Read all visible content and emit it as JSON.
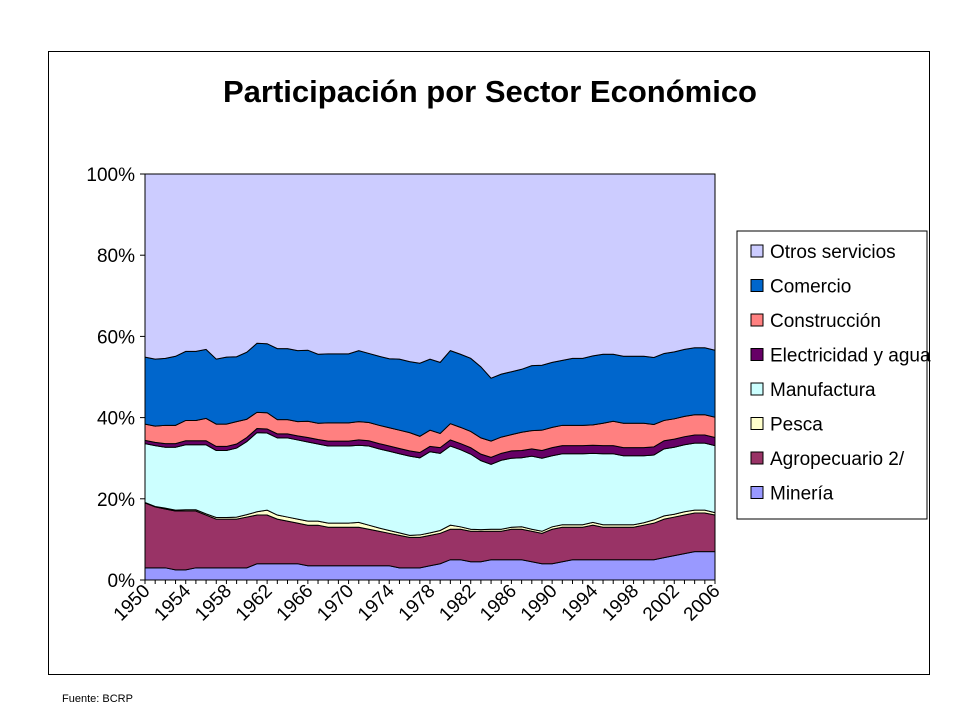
{
  "chart_data": {
    "type": "area",
    "stacked": true,
    "percent": true,
    "title": "Participación por Sector Económico",
    "source": "Fuente: BCRP",
    "x": [
      1950,
      1951,
      1952,
      1953,
      1954,
      1955,
      1956,
      1957,
      1958,
      1959,
      1960,
      1961,
      1962,
      1963,
      1964,
      1965,
      1966,
      1967,
      1968,
      1969,
      1970,
      1971,
      1972,
      1973,
      1974,
      1975,
      1976,
      1977,
      1978,
      1979,
      1980,
      1981,
      1982,
      1983,
      1984,
      1985,
      1986,
      1987,
      1988,
      1989,
      1990,
      1991,
      1992,
      1993,
      1994,
      1995,
      1996,
      1997,
      1998,
      1999,
      2000,
      2001,
      2002,
      2003,
      2004,
      2005,
      2006
    ],
    "x_tick_labels": [
      "1950",
      "1954",
      "1958",
      "1962",
      "1966",
      "1970",
      "1974",
      "1978",
      "1982",
      "1986",
      "1990",
      "1994",
      "1998",
      "2002",
      "2006"
    ],
    "y_ticks": [
      "0%",
      "20%",
      "40%",
      "60%",
      "80%",
      "100%"
    ],
    "ylim": [
      0,
      100
    ],
    "legend_position": "right",
    "series": [
      {
        "name": "Minería",
        "color": "#9999ff",
        "values": [
          3,
          3,
          3,
          2.5,
          2.5,
          3,
          3,
          3,
          3,
          3,
          3,
          4,
          4,
          4,
          4,
          4,
          3.5,
          3.5,
          3.5,
          3.5,
          3.5,
          3.5,
          3.5,
          3.5,
          3.5,
          3,
          3,
          3,
          3.5,
          4,
          5,
          5,
          4.5,
          4.5,
          5,
          5,
          5,
          5,
          4.5,
          4,
          4,
          4.5,
          5,
          5,
          5,
          5,
          5,
          5,
          5,
          5,
          5,
          5.5,
          6,
          6.5,
          7,
          7,
          7
        ]
      },
      {
        "name": "Agropecuario 2/",
        "color": "#993366",
        "values": [
          16,
          15,
          14.5,
          14.5,
          14.5,
          14,
          13,
          12,
          12,
          12,
          12.5,
          12,
          12,
          11,
          10.5,
          10,
          10,
          10,
          9.5,
          9.5,
          9.5,
          9.5,
          9,
          8.5,
          8,
          8,
          7.5,
          7.5,
          7.5,
          7.5,
          7.5,
          7.5,
          7.5,
          7.5,
          7,
          7,
          7.5,
          7.5,
          7.5,
          7.5,
          8.5,
          8.5,
          8,
          8,
          8.5,
          8,
          8,
          8,
          8,
          8.5,
          9,
          9.5,
          9.5,
          9.5,
          9.5,
          9.5,
          9
        ]
      },
      {
        "name": "Pesca",
        "color": "#ffffcc",
        "values": [
          0.1,
          0.1,
          0.2,
          0.2,
          0.3,
          0.3,
          0.3,
          0.4,
          0.4,
          0.5,
          0.6,
          0.8,
          1.2,
          1,
          1,
          1,
          1,
          1,
          1,
          1,
          1,
          1.2,
          1,
          0.8,
          0.7,
          0.6,
          0.5,
          0.6,
          0.6,
          0.7,
          1,
          0.6,
          0.5,
          0.4,
          0.5,
          0.5,
          0.5,
          0.6,
          0.5,
          0.5,
          0.6,
          0.6,
          0.6,
          0.6,
          0.7,
          0.6,
          0.6,
          0.6,
          0.6,
          0.6,
          0.8,
          0.8,
          0.7,
          0.8,
          0.7,
          0.7,
          0.6
        ]
      },
      {
        "name": "Manufactura",
        "color": "#ccffff",
        "values": [
          14.5,
          15,
          15,
          15.5,
          16,
          16,
          17,
          16.5,
          16.5,
          17,
          18,
          19.5,
          19,
          19,
          19.5,
          19.5,
          19.5,
          19,
          19,
          19,
          19,
          19,
          19.5,
          19.5,
          19.5,
          19.5,
          19.5,
          19,
          20,
          19,
          19.5,
          19,
          18.5,
          17,
          16,
          17,
          17,
          17,
          18,
          18,
          17.5,
          17.5,
          17.5,
          17.5,
          17,
          17.5,
          17.5,
          17,
          17,
          16.5,
          16,
          16.5,
          16.5,
          16.5,
          16.5,
          16.5,
          16.5
        ]
      },
      {
        "name": "Electricidad y agua",
        "color": "#660066",
        "values": [
          0.8,
          0.8,
          0.9,
          0.9,
          1,
          1,
          1,
          1,
          1,
          1,
          1,
          1,
          1,
          1,
          1,
          1,
          1.1,
          1.1,
          1.2,
          1.2,
          1.2,
          1.3,
          1.3,
          1.3,
          1.3,
          1.3,
          1.3,
          1.3,
          1.3,
          1.4,
          1.5,
          1.5,
          1.6,
          1.6,
          1.7,
          1.7,
          1.8,
          1.8,
          1.8,
          1.9,
          2,
          2,
          2,
          2,
          2,
          2,
          2,
          2,
          2,
          2,
          2,
          2,
          2,
          2,
          2,
          2,
          2
        ]
      },
      {
        "name": "Construcción",
        "color": "#ff8080",
        "values": [
          4,
          4,
          4.5,
          4.5,
          5,
          5,
          5.5,
          5.5,
          5.5,
          5.5,
          4.5,
          4,
          4,
          3.5,
          3.5,
          3.5,
          4,
          4,
          4.5,
          4.5,
          4.5,
          4.5,
          4.5,
          4.5,
          4.5,
          4.5,
          4.5,
          4,
          4,
          3.5,
          4,
          4,
          4,
          4,
          4,
          4,
          4,
          4.5,
          4.5,
          5,
          5,
          5,
          5,
          5,
          5,
          5.5,
          6,
          6,
          6,
          6,
          5.5,
          5,
          5,
          5,
          5,
          5,
          5
        ]
      },
      {
        "name": "Comercio",
        "color": "#0066cc",
        "values": [
          16.5,
          16.5,
          16.5,
          17,
          17,
          17,
          17,
          16,
          16.5,
          16,
          16.5,
          17,
          17,
          17.5,
          17.5,
          17.5,
          17.5,
          17,
          17,
          17,
          17,
          17.5,
          17,
          17,
          17,
          17.5,
          17.5,
          18,
          17.5,
          17.5,
          18,
          18,
          18,
          17.5,
          15.5,
          15.5,
          15.5,
          15.5,
          16,
          16,
          16,
          16,
          16.5,
          16.5,
          17,
          17,
          16.5,
          16.5,
          16.5,
          16.5,
          16.5,
          16.5,
          16.5,
          16.5,
          16.5,
          16.5,
          16.5
        ]
      },
      {
        "name": "Otros servicios",
        "color": "#ccccff",
        "values": null
      }
    ]
  }
}
